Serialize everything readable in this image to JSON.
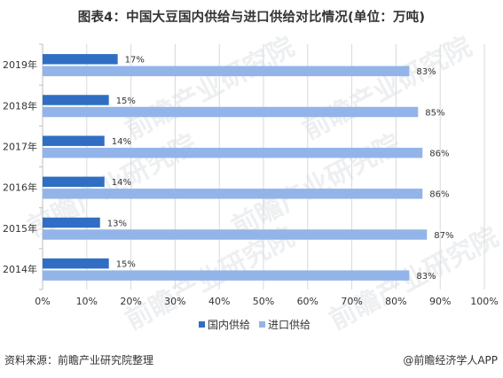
{
  "title": "图表4：中国大豆国内供给与进口供给对比情况(单位：万吨)",
  "footer": {
    "source": "资料来源：前瞻产业研究院整理",
    "brand": "@前瞻经济学人APP"
  },
  "watermark": "前瞻产业研究院",
  "colors": {
    "domestic": "#2F6EC3",
    "import": "#93B4E8",
    "grid": "#d9d9d9",
    "text": "#333333"
  },
  "chart_data": {
    "type": "bar",
    "orientation": "horizontal",
    "categories": [
      "2019年",
      "2018年",
      "2017年",
      "2016年",
      "2015年",
      "2014年"
    ],
    "series": [
      {
        "name": "国内供给",
        "values": [
          17,
          15,
          14,
          14,
          13,
          15
        ],
        "labels": [
          "17%",
          "15%",
          "14%",
          "14%",
          "13%",
          "15%"
        ]
      },
      {
        "name": "进口供给",
        "values": [
          83,
          85,
          86,
          86,
          87,
          83
        ],
        "labels": [
          "83%",
          "85%",
          "86%",
          "86%",
          "87%",
          "83%"
        ]
      }
    ],
    "xlim": [
      0,
      100
    ],
    "xticks": [
      "0%",
      "10%",
      "20%",
      "30%",
      "40%",
      "50%",
      "60%",
      "70%",
      "80%",
      "90%",
      "100%"
    ],
    "grid": true,
    "legend": "bottom"
  }
}
